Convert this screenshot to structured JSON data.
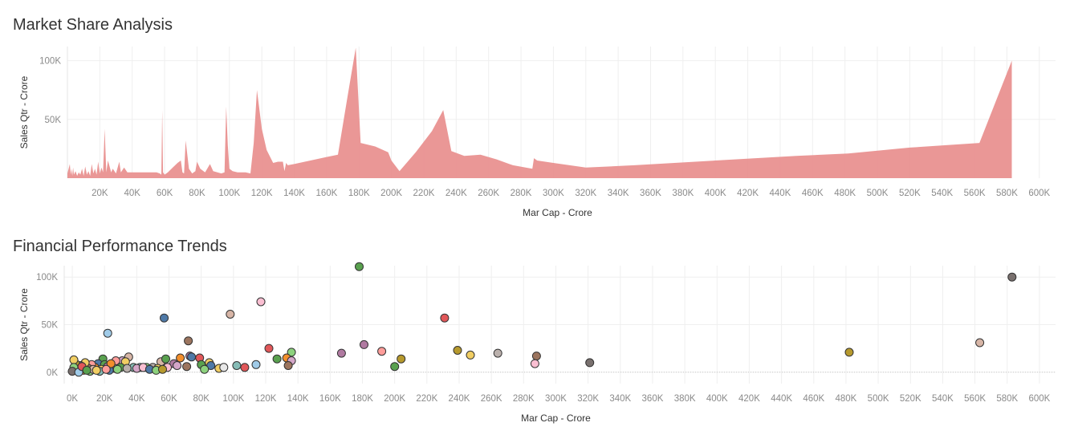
{
  "chart_data": [
    {
      "type": "area",
      "title": "Market Share Analysis",
      "xlabel": "Mar Cap - Crore",
      "ylabel": "Sales Qtr - Crore",
      "xlim": [
        0,
        610000
      ],
      "ylim": [
        0,
        112000
      ],
      "x_ticks": [
        20000,
        40000,
        60000,
        80000,
        100000,
        120000,
        140000,
        160000,
        180000,
        200000,
        220000,
        240000,
        260000,
        280000,
        300000,
        320000,
        340000,
        360000,
        380000,
        400000,
        420000,
        440000,
        460000,
        480000,
        500000,
        520000,
        540000,
        560000,
        580000,
        600000
      ],
      "x_tick_labels": [
        "20K",
        "40K",
        "60K",
        "80K",
        "100K",
        "120K",
        "140K",
        "160K",
        "180K",
        "200K",
        "220K",
        "240K",
        "260K",
        "280K",
        "300K",
        "320K",
        "340K",
        "360K",
        "380K",
        "400K",
        "420K",
        "440K",
        "460K",
        "480K",
        "500K",
        "520K",
        "540K",
        "560K",
        "580K",
        "600K"
      ],
      "y_ticks": [
        50000,
        100000
      ],
      "y_tick_labels": [
        "50K",
        "100K"
      ],
      "grid": true,
      "color": "#E88E8D",
      "series": [
        {
          "x": [
            0,
            1500,
            2000,
            2500,
            3000,
            3500,
            4000,
            5000,
            6000,
            7000,
            8000,
            9000,
            10000,
            11000,
            12000,
            13000,
            14000,
            15000,
            16000,
            17000,
            18000,
            19000,
            20000,
            21000,
            22000,
            23000,
            24000,
            25000,
            27000,
            28000,
            30000,
            32000,
            33000,
            35000,
            37000,
            40000,
            45000,
            50000,
            55000,
            57000,
            58000,
            58500,
            59000,
            60000,
            62000,
            65000,
            68000,
            70000,
            71000,
            72000,
            73000,
            75000,
            77000,
            79000,
            80000,
            82000,
            85000,
            88000,
            90000,
            95000,
            97000,
            98000,
            99000,
            100000,
            102000,
            105000,
            110000,
            113000,
            115000,
            117000,
            120000,
            123000,
            127000,
            130000,
            133000,
            134000,
            135000,
            136000,
            140000,
            150000,
            160000,
            167000,
            173000,
            178000,
            181000,
            190000,
            198000,
            200000,
            205000,
            215000,
            225000,
            232000,
            237000,
            245000,
            255000,
            265000,
            275000,
            287000,
            288000,
            290000,
            300000,
            320000,
            350000,
            400000,
            450000,
            482000,
            520000,
            563000,
            583000
          ],
          "y": [
            4000,
            12000,
            3000,
            8000,
            2000,
            9000,
            3000,
            6000,
            2000,
            5000,
            3000,
            8000,
            2000,
            10000,
            3000,
            6000,
            2000,
            12000,
            4000,
            8000,
            3000,
            14000,
            4000,
            9000,
            5000,
            42000,
            5000,
            15000,
            5000,
            8000,
            4000,
            14000,
            5000,
            9000,
            5000,
            5000,
            5000,
            5000,
            5000,
            4000,
            3000,
            58000,
            5000,
            3000,
            5000,
            9000,
            13000,
            15000,
            5000,
            4000,
            32000,
            8000,
            4000,
            6000,
            14000,
            8000,
            5000,
            12000,
            6000,
            4000,
            5000,
            61000,
            28000,
            8000,
            6000,
            5000,
            5000,
            4000,
            30000,
            75000,
            42000,
            24000,
            13000,
            14000,
            14000,
            6000,
            13000,
            11000,
            12000,
            15000,
            18000,
            20000,
            70000,
            111000,
            30000,
            27000,
            22000,
            15000,
            6000,
            22000,
            40000,
            58000,
            23000,
            19000,
            20000,
            16000,
            11000,
            8000,
            17000,
            15000,
            13000,
            9000,
            11000,
            15000,
            19000,
            21000,
            26000,
            30000,
            100000
          ]
        }
      ]
    },
    {
      "type": "scatter",
      "title": "Financial Performance Trends",
      "xlabel": "Mar Cap - Crore",
      "ylabel": "Sales Qtr - Crore",
      "xlim": [
        -5000,
        610000
      ],
      "ylim": [
        -12000,
        112000
      ],
      "x_ticks": [
        0,
        20000,
        40000,
        60000,
        80000,
        100000,
        120000,
        140000,
        160000,
        180000,
        200000,
        220000,
        240000,
        260000,
        280000,
        300000,
        320000,
        340000,
        360000,
        380000,
        400000,
        420000,
        440000,
        460000,
        480000,
        500000,
        520000,
        540000,
        560000,
        580000,
        600000
      ],
      "x_tick_labels": [
        "0K",
        "20K",
        "40K",
        "60K",
        "80K",
        "100K",
        "120K",
        "140K",
        "160K",
        "180K",
        "200K",
        "220K",
        "240K",
        "260K",
        "280K",
        "300K",
        "320K",
        "340K",
        "360K",
        "380K",
        "400K",
        "420K",
        "440K",
        "460K",
        "480K",
        "500K",
        "520K",
        "540K",
        "560K",
        "580K",
        "600K"
      ],
      "y_ticks": [
        0,
        50000,
        100000
      ],
      "y_tick_labels": [
        "0K",
        "50K",
        "100K"
      ],
      "grid": true,
      "points": [
        {
          "x": 178000,
          "y": 111000,
          "c": "#59A14F"
        },
        {
          "x": 583000,
          "y": 100000,
          "c": "#79706E"
        },
        {
          "x": 117000,
          "y": 74000,
          "c": "#FABFD2"
        },
        {
          "x": 98000,
          "y": 61000,
          "c": "#D7B5A6"
        },
        {
          "x": 57000,
          "y": 57000,
          "c": "#4E79A7"
        },
        {
          "x": 231000,
          "y": 57000,
          "c": "#E15759"
        },
        {
          "x": 22000,
          "y": 41000,
          "c": "#A0CBE8"
        },
        {
          "x": 72000,
          "y": 33000,
          "c": "#9C755F"
        },
        {
          "x": 563000,
          "y": 31000,
          "c": "#D7B5A6"
        },
        {
          "x": 181000,
          "y": 29000,
          "c": "#B07AA1"
        },
        {
          "x": 122000,
          "y": 25000,
          "c": "#E15759"
        },
        {
          "x": 239000,
          "y": 23000,
          "c": "#B6992D"
        },
        {
          "x": 192000,
          "y": 22000,
          "c": "#FF9D9A"
        },
        {
          "x": 136000,
          "y": 21000,
          "c": "#8CD17D"
        },
        {
          "x": 167000,
          "y": 20000,
          "c": "#B07AA1"
        },
        {
          "x": 264000,
          "y": 20000,
          "c": "#BAB0AC"
        },
        {
          "x": 482000,
          "y": 21000,
          "c": "#B6992D"
        },
        {
          "x": 247000,
          "y": 18000,
          "c": "#F1CE63"
        },
        {
          "x": 288000,
          "y": 17000,
          "c": "#9C755F"
        },
        {
          "x": 133000,
          "y": 15000,
          "c": "#F28E2B"
        },
        {
          "x": 204000,
          "y": 14000,
          "c": "#B6992D"
        },
        {
          "x": 127000,
          "y": 14000,
          "c": "#59A14F"
        },
        {
          "x": 136000,
          "y": 12000,
          "c": "#D4A6C8"
        },
        {
          "x": 287000,
          "y": 9000,
          "c": "#FABFD2"
        },
        {
          "x": 321000,
          "y": 10000,
          "c": "#79706E"
        },
        {
          "x": 134000,
          "y": 7000,
          "c": "#9C755F"
        },
        {
          "x": 200000,
          "y": 6000,
          "c": "#59A14F"
        },
        {
          "x": 114000,
          "y": 8000,
          "c": "#A0CBE8"
        },
        {
          "x": 107000,
          "y": 5000,
          "c": "#E15759"
        },
        {
          "x": 102000,
          "y": 7000,
          "c": "#86BCB6"
        },
        {
          "x": 79000,
          "y": 15000,
          "c": "#E15759"
        },
        {
          "x": 73000,
          "y": 17000,
          "c": "#B07AA1"
        },
        {
          "x": 67000,
          "y": 15000,
          "c": "#F28E2B"
        },
        {
          "x": 74000,
          "y": 16000,
          "c": "#4E79A7"
        },
        {
          "x": 85000,
          "y": 10000,
          "c": "#F1CE63"
        },
        {
          "x": 86000,
          "y": 7000,
          "c": "#4E79A7"
        },
        {
          "x": 80000,
          "y": 8000,
          "c": "#59A14F"
        },
        {
          "x": 82000,
          "y": 3000,
          "c": "#8CD17D"
        },
        {
          "x": 63000,
          "y": 9000,
          "c": "#B07AA1"
        },
        {
          "x": 59000,
          "y": 5000,
          "c": "#FABFD2"
        },
        {
          "x": 55000,
          "y": 11000,
          "c": "#D7B5A6"
        },
        {
          "x": 58000,
          "y": 14000,
          "c": "#59A14F"
        },
        {
          "x": 71000,
          "y": 6000,
          "c": "#9C755F"
        },
        {
          "x": 91000,
          "y": 4000,
          "c": "#F1CE63"
        },
        {
          "x": 94000,
          "y": 5000,
          "c": "#E8E8E8"
        },
        {
          "x": 65000,
          "y": 7000,
          "c": "#D4A6C8"
        },
        {
          "x": 35000,
          "y": 16000,
          "c": "#D7B5A6"
        },
        {
          "x": 31000,
          "y": 12000,
          "c": "#D4A6C8"
        },
        {
          "x": 27000,
          "y": 12000,
          "c": "#FF9D9A"
        },
        {
          "x": 33000,
          "y": 11000,
          "c": "#F1CE63"
        },
        {
          "x": 38000,
          "y": 5000,
          "c": "#86BCB6"
        },
        {
          "x": 42000,
          "y": 5000,
          "c": "#A0CBE8"
        },
        {
          "x": 46000,
          "y": 5000,
          "c": "#8CD17D"
        },
        {
          "x": 50000,
          "y": 5000,
          "c": "#BAB0AC"
        },
        {
          "x": 53000,
          "y": 4000,
          "c": "#F1CE63"
        },
        {
          "x": 30000,
          "y": 5000,
          "c": "#59A14F"
        },
        {
          "x": 26000,
          "y": 4000,
          "c": "#D4A6C8"
        },
        {
          "x": 19000,
          "y": 14000,
          "c": "#59A14F"
        },
        {
          "x": 16000,
          "y": 9000,
          "c": "#4E79A7"
        },
        {
          "x": 20000,
          "y": 8000,
          "c": "#59A14F"
        },
        {
          "x": 22000,
          "y": 6000,
          "c": "#B07AA1"
        },
        {
          "x": 23000,
          "y": 2000,
          "c": "#4E79A7"
        },
        {
          "x": 18000,
          "y": 3000,
          "c": "#F1CE63"
        },
        {
          "x": 14000,
          "y": 5000,
          "c": "#F28E2B"
        },
        {
          "x": 12000,
          "y": 8000,
          "c": "#FF9D9A"
        },
        {
          "x": 10000,
          "y": 4000,
          "c": "#9C755F"
        },
        {
          "x": 8000,
          "y": 10000,
          "c": "#F1CE63"
        },
        {
          "x": 7000,
          "y": 2000,
          "c": "#F28E2B"
        },
        {
          "x": 5000,
          "y": 7000,
          "c": "#4E79A7"
        },
        {
          "x": 3000,
          "y": 3000,
          "c": "#FABFD2"
        },
        {
          "x": 2000,
          "y": 9000,
          "c": "#B6992D"
        },
        {
          "x": 1000,
          "y": 13000,
          "c": "#F1CE63"
        },
        {
          "x": 1000,
          "y": 5000,
          "c": "#8CD17D"
        },
        {
          "x": 0,
          "y": 1000,
          "c": "#79706E"
        },
        {
          "x": 4000,
          "y": 0,
          "c": "#A0CBE8"
        },
        {
          "x": 6000,
          "y": 6000,
          "c": "#E15759"
        },
        {
          "x": 11000,
          "y": 1000,
          "c": "#8CD17D"
        },
        {
          "x": 13000,
          "y": 3000,
          "c": "#D7B5A6"
        },
        {
          "x": 17000,
          "y": 1000,
          "c": "#86BCB6"
        },
        {
          "x": 24000,
          "y": 9000,
          "c": "#F28E2B"
        },
        {
          "x": 28000,
          "y": 3000,
          "c": "#8CD17D"
        },
        {
          "x": 34000,
          "y": 4000,
          "c": "#BAB0AC"
        },
        {
          "x": 40000,
          "y": 4000,
          "c": "#D4A6C8"
        },
        {
          "x": 44000,
          "y": 5000,
          "c": "#FABFD2"
        },
        {
          "x": 48000,
          "y": 3000,
          "c": "#4E79A7"
        },
        {
          "x": 52000,
          "y": 2000,
          "c": "#8CD17D"
        },
        {
          "x": 56000,
          "y": 3000,
          "c": "#B6992D"
        },
        {
          "x": 9000,
          "y": 2000,
          "c": "#59A14F"
        },
        {
          "x": 15000,
          "y": 2000,
          "c": "#F1CE63"
        },
        {
          "x": 21000,
          "y": 3000,
          "c": "#FF9D9A"
        }
      ]
    }
  ]
}
